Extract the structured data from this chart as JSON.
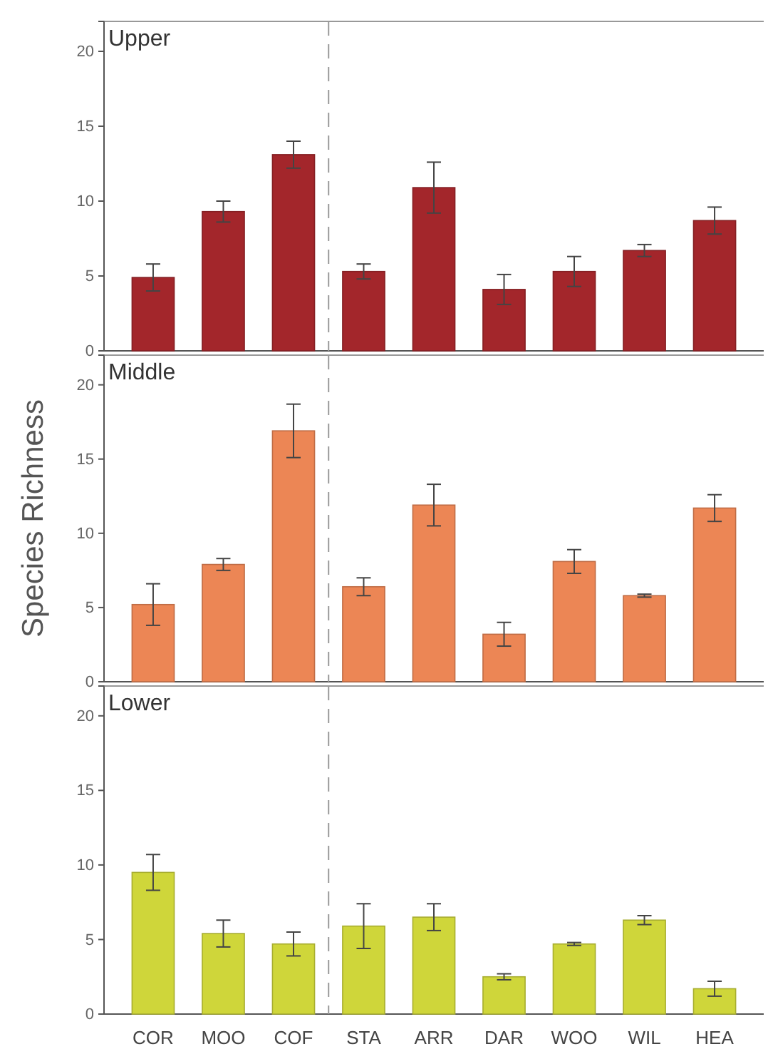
{
  "chart_data": [
    {
      "type": "bar",
      "title": "Upper",
      "categories": [
        null,
        null,
        null,
        null,
        null,
        null,
        null,
        null,
        null
      ],
      "values": [
        4.9,
        9.3,
        13.1,
        5.3,
        10.9,
        4.1,
        5.3,
        6.7,
        8.7
      ],
      "errors": [
        0.9,
        0.7,
        0.9,
        0.5,
        1.7,
        1.0,
        1.0,
        0.4,
        0.9
      ],
      "color": "#a3262b",
      "ylim": [
        0,
        22
      ],
      "yticks": [
        0,
        5,
        10,
        15,
        20
      ],
      "tick_labels": "y",
      "grid": false
    },
    {
      "type": "bar",
      "title": "Middle",
      "ylabel": "Species Richness",
      "categories": [
        null,
        null,
        null,
        null,
        null,
        null,
        null,
        null,
        null
      ],
      "values": [
        5.2,
        7.9,
        16.9,
        6.4,
        11.9,
        3.2,
        8.1,
        5.8,
        11.7
      ],
      "errors": [
        1.4,
        0.4,
        1.8,
        0.6,
        1.4,
        0.8,
        0.8,
        0.1,
        0.9
      ],
      "color": "#ec8655",
      "ylim": [
        0,
        22
      ],
      "yticks": [
        0,
        5,
        10,
        15,
        20
      ],
      "tick_labels": "y",
      "grid": false
    },
    {
      "type": "bar",
      "title": "Lower",
      "categories": [
        "COR",
        "MOO",
        "COF",
        "STA",
        "ARR",
        "DAR",
        "WOO",
        "WIL",
        "HEA"
      ],
      "values": [
        9.5,
        5.4,
        4.7,
        5.9,
        6.5,
        2.5,
        4.7,
        6.3,
        1.7
      ],
      "errors": [
        1.2,
        0.9,
        0.8,
        1.5,
        0.9,
        0.2,
        0.1,
        0.3,
        0.5
      ],
      "color": "#cfd63a",
      "ylim": [
        0,
        22
      ],
      "yticks": [
        0,
        5,
        10,
        15,
        20
      ],
      "grid": false
    }
  ]
}
